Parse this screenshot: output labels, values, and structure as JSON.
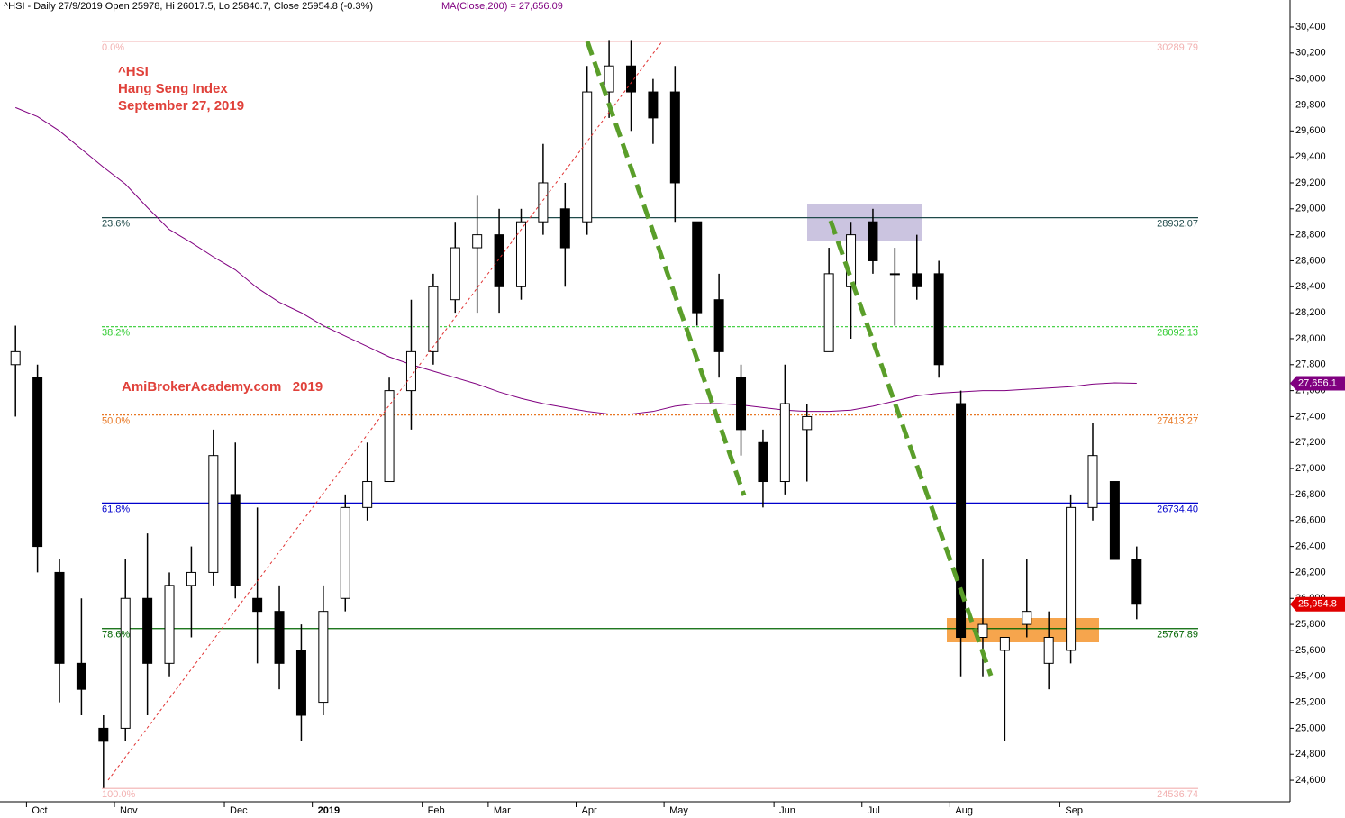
{
  "chart_data": {
    "type": "candlestick",
    "title": "^HSI - Daily 27/9/2019 Open 25978, Hi 26017.5, Lo 25840.7, Close 25954.8 (-0.3%)",
    "ma_label": "MA(Close,200) = 27,656.09",
    "annotations": [
      "^HSI",
      "Hang Seng Index",
      "September 27, 2019",
      "AmiBrokerAcademy.com   2019"
    ],
    "categories": [
      null,
      "Oct",
      null,
      null,
      null,
      "Nov",
      null,
      null,
      null,
      null,
      "Dec",
      null,
      null,
      null,
      "2019",
      null,
      null,
      null,
      null,
      "Feb",
      null,
      null,
      "Mar",
      null,
      null,
      null,
      "Apr",
      null,
      null,
      null,
      "May",
      null,
      null,
      null,
      null,
      "Jun",
      null,
      null,
      null,
      "Jul",
      null,
      null,
      null,
      "Aug",
      null,
      null,
      null,
      null,
      "Sep",
      null,
      null,
      null
    ],
    "open": [
      27800,
      27700,
      26200,
      25500,
      25000,
      25000,
      26000,
      25500,
      26100,
      26200,
      26800,
      26000,
      25900,
      25600,
      25200,
      26000,
      26700,
      26900,
      27600,
      27900,
      28300,
      28700,
      28800,
      28400,
      28900,
      29000,
      28900,
      29900,
      30100,
      29900,
      29900,
      28900,
      28300,
      27700,
      27200,
      26900,
      27300,
      27900,
      28400,
      28900,
      28500,
      28500,
      28500,
      27500,
      25700,
      25600,
      25800,
      25500,
      25600,
      26700,
      26900,
      26300
    ],
    "high": [
      28100,
      27800,
      26300,
      26000,
      25100,
      26300,
      26500,
      26200,
      26400,
      27300,
      27200,
      26700,
      26100,
      25800,
      26100,
      26800,
      27200,
      27700,
      28300,
      28500,
      28900,
      29100,
      29000,
      29000,
      29500,
      29200,
      30100,
      30300,
      30300,
      30000,
      30100,
      28900,
      28500,
      27800,
      27300,
      27800,
      27500,
      28700,
      28900,
      29000,
      28700,
      28800,
      28600,
      27600,
      26300,
      25700,
      26300,
      25900,
      26800,
      27350,
      26900,
      26400
    ],
    "low": [
      27400,
      26200,
      25200,
      25100,
      24540,
      24900,
      25100,
      25400,
      25700,
      26100,
      26000,
      25500,
      25300,
      24900,
      25100,
      25900,
      26600,
      26900,
      27300,
      27800,
      28200,
      28200,
      28200,
      28300,
      28800,
      28400,
      28800,
      29700,
      29600,
      29500,
      28900,
      28100,
      27700,
      27100,
      26700,
      26800,
      26900,
      27900,
      28000,
      28500,
      28100,
      28300,
      27700,
      25400,
      25400,
      24900,
      25700,
      25300,
      25500,
      26600,
      26300,
      25840
    ],
    "close": [
      27900,
      26400,
      25500,
      25300,
      24900,
      26000,
      25500,
      26100,
      26200,
      27100,
      26100,
      25900,
      25500,
      25100,
      25900,
      26700,
      26900,
      27600,
      27900,
      28400,
      28700,
      28800,
      28400,
      28900,
      29200,
      28700,
      29900,
      30100,
      29900,
      29700,
      29200,
      28200,
      27900,
      27300,
      26900,
      27500,
      27400,
      28500,
      28800,
      28600,
      28500,
      28400,
      27800,
      25700,
      25800,
      25700,
      25900,
      25700,
      26700,
      27100,
      26300,
      25955
    ],
    "candle_color": "#000000",
    "ma": {
      "color": "#800080",
      "values": [
        29780,
        29710,
        29600,
        29460,
        29320,
        29190,
        29010,
        28840,
        28740,
        28630,
        28530,
        28390,
        28280,
        28200,
        28100,
        28020,
        27940,
        27860,
        27800,
        27750,
        27700,
        27650,
        27590,
        27540,
        27500,
        27470,
        27440,
        27420,
        27420,
        27440,
        27480,
        27500,
        27500,
        27490,
        27470,
        27450,
        27440,
        27440,
        27450,
        27480,
        27520,
        27560,
        27580,
        27590,
        27600,
        27600,
        27610,
        27620,
        27630,
        27650,
        27660,
        27656
      ]
    },
    "fib_levels": [
      {
        "label": "0.0%",
        "value": 30289.79,
        "color": "#f2b0b0",
        "style": "solid"
      },
      {
        "label": "23.6%",
        "value": 28932.07,
        "color": "#1f4a4a",
        "style": "solid"
      },
      {
        "label": "38.2%",
        "value": 28092.13,
        "color": "#33cc33",
        "style": "dashed"
      },
      {
        "label": "50.0%",
        "value": 27413.27,
        "color": "#e87722",
        "style": "dotted"
      },
      {
        "label": "61.8%",
        "value": 26734.4,
        "value_label": "26734.40",
        "color": "#0000cc",
        "style": "solid"
      },
      {
        "label": "78.6%",
        "value": 25767.89,
        "color": "#006400",
        "style": "solid"
      },
      {
        "label": "100.0%",
        "value": 24536.74,
        "color": "#f2b0b0",
        "style": "solid"
      }
    ],
    "price_tags": [
      {
        "value": 27656.1,
        "label": "27,656.1",
        "color": "#800080"
      },
      {
        "value": 25954.8,
        "label": "25,954.8",
        "color": "#e00000"
      }
    ],
    "ylim": [
      24434,
      30608
    ],
    "yticks": [
      {
        "value": 24600,
        "label": "24,600"
      },
      {
        "value": 24800,
        "label": "24,800"
      },
      {
        "value": 25000,
        "label": "25,000"
      },
      {
        "value": 25200,
        "label": "25,200"
      },
      {
        "value": 25400,
        "label": "25,400"
      },
      {
        "value": 25600,
        "label": "25,600"
      },
      {
        "value": 25800,
        "label": "25,800"
      },
      {
        "value": 26000,
        "label": "26,000"
      },
      {
        "value": 26200,
        "label": "26,200"
      },
      {
        "value": 26400,
        "label": "26,400"
      },
      {
        "value": 26600,
        "label": "26,600"
      },
      {
        "value": 26800,
        "label": "26,800"
      },
      {
        "value": 27000,
        "label": "27,000"
      },
      {
        "value": 27200,
        "label": "27,200"
      },
      {
        "value": 27400,
        "label": "27,400"
      },
      {
        "value": 27600,
        "label": "27,600"
      },
      {
        "value": 27800,
        "label": "27,800"
      },
      {
        "value": 28000,
        "label": "28,000"
      },
      {
        "value": 28200,
        "label": "28,200"
      },
      {
        "value": 28400,
        "label": "28,400"
      },
      {
        "value": 28600,
        "label": "28,600"
      },
      {
        "value": 28800,
        "label": "28,800"
      },
      {
        "value": 29000,
        "label": "29,000"
      },
      {
        "value": 29200,
        "label": "29,200"
      },
      {
        "value": 29400,
        "label": "29,400"
      },
      {
        "value": 29600,
        "label": "29,600"
      },
      {
        "value": 29800,
        "label": "29,800"
      },
      {
        "value": 30000,
        "label": "30,000"
      },
      {
        "value": 30200,
        "label": "30,200"
      },
      {
        "value": 30400,
        "label": "30,400"
      }
    ]
  }
}
